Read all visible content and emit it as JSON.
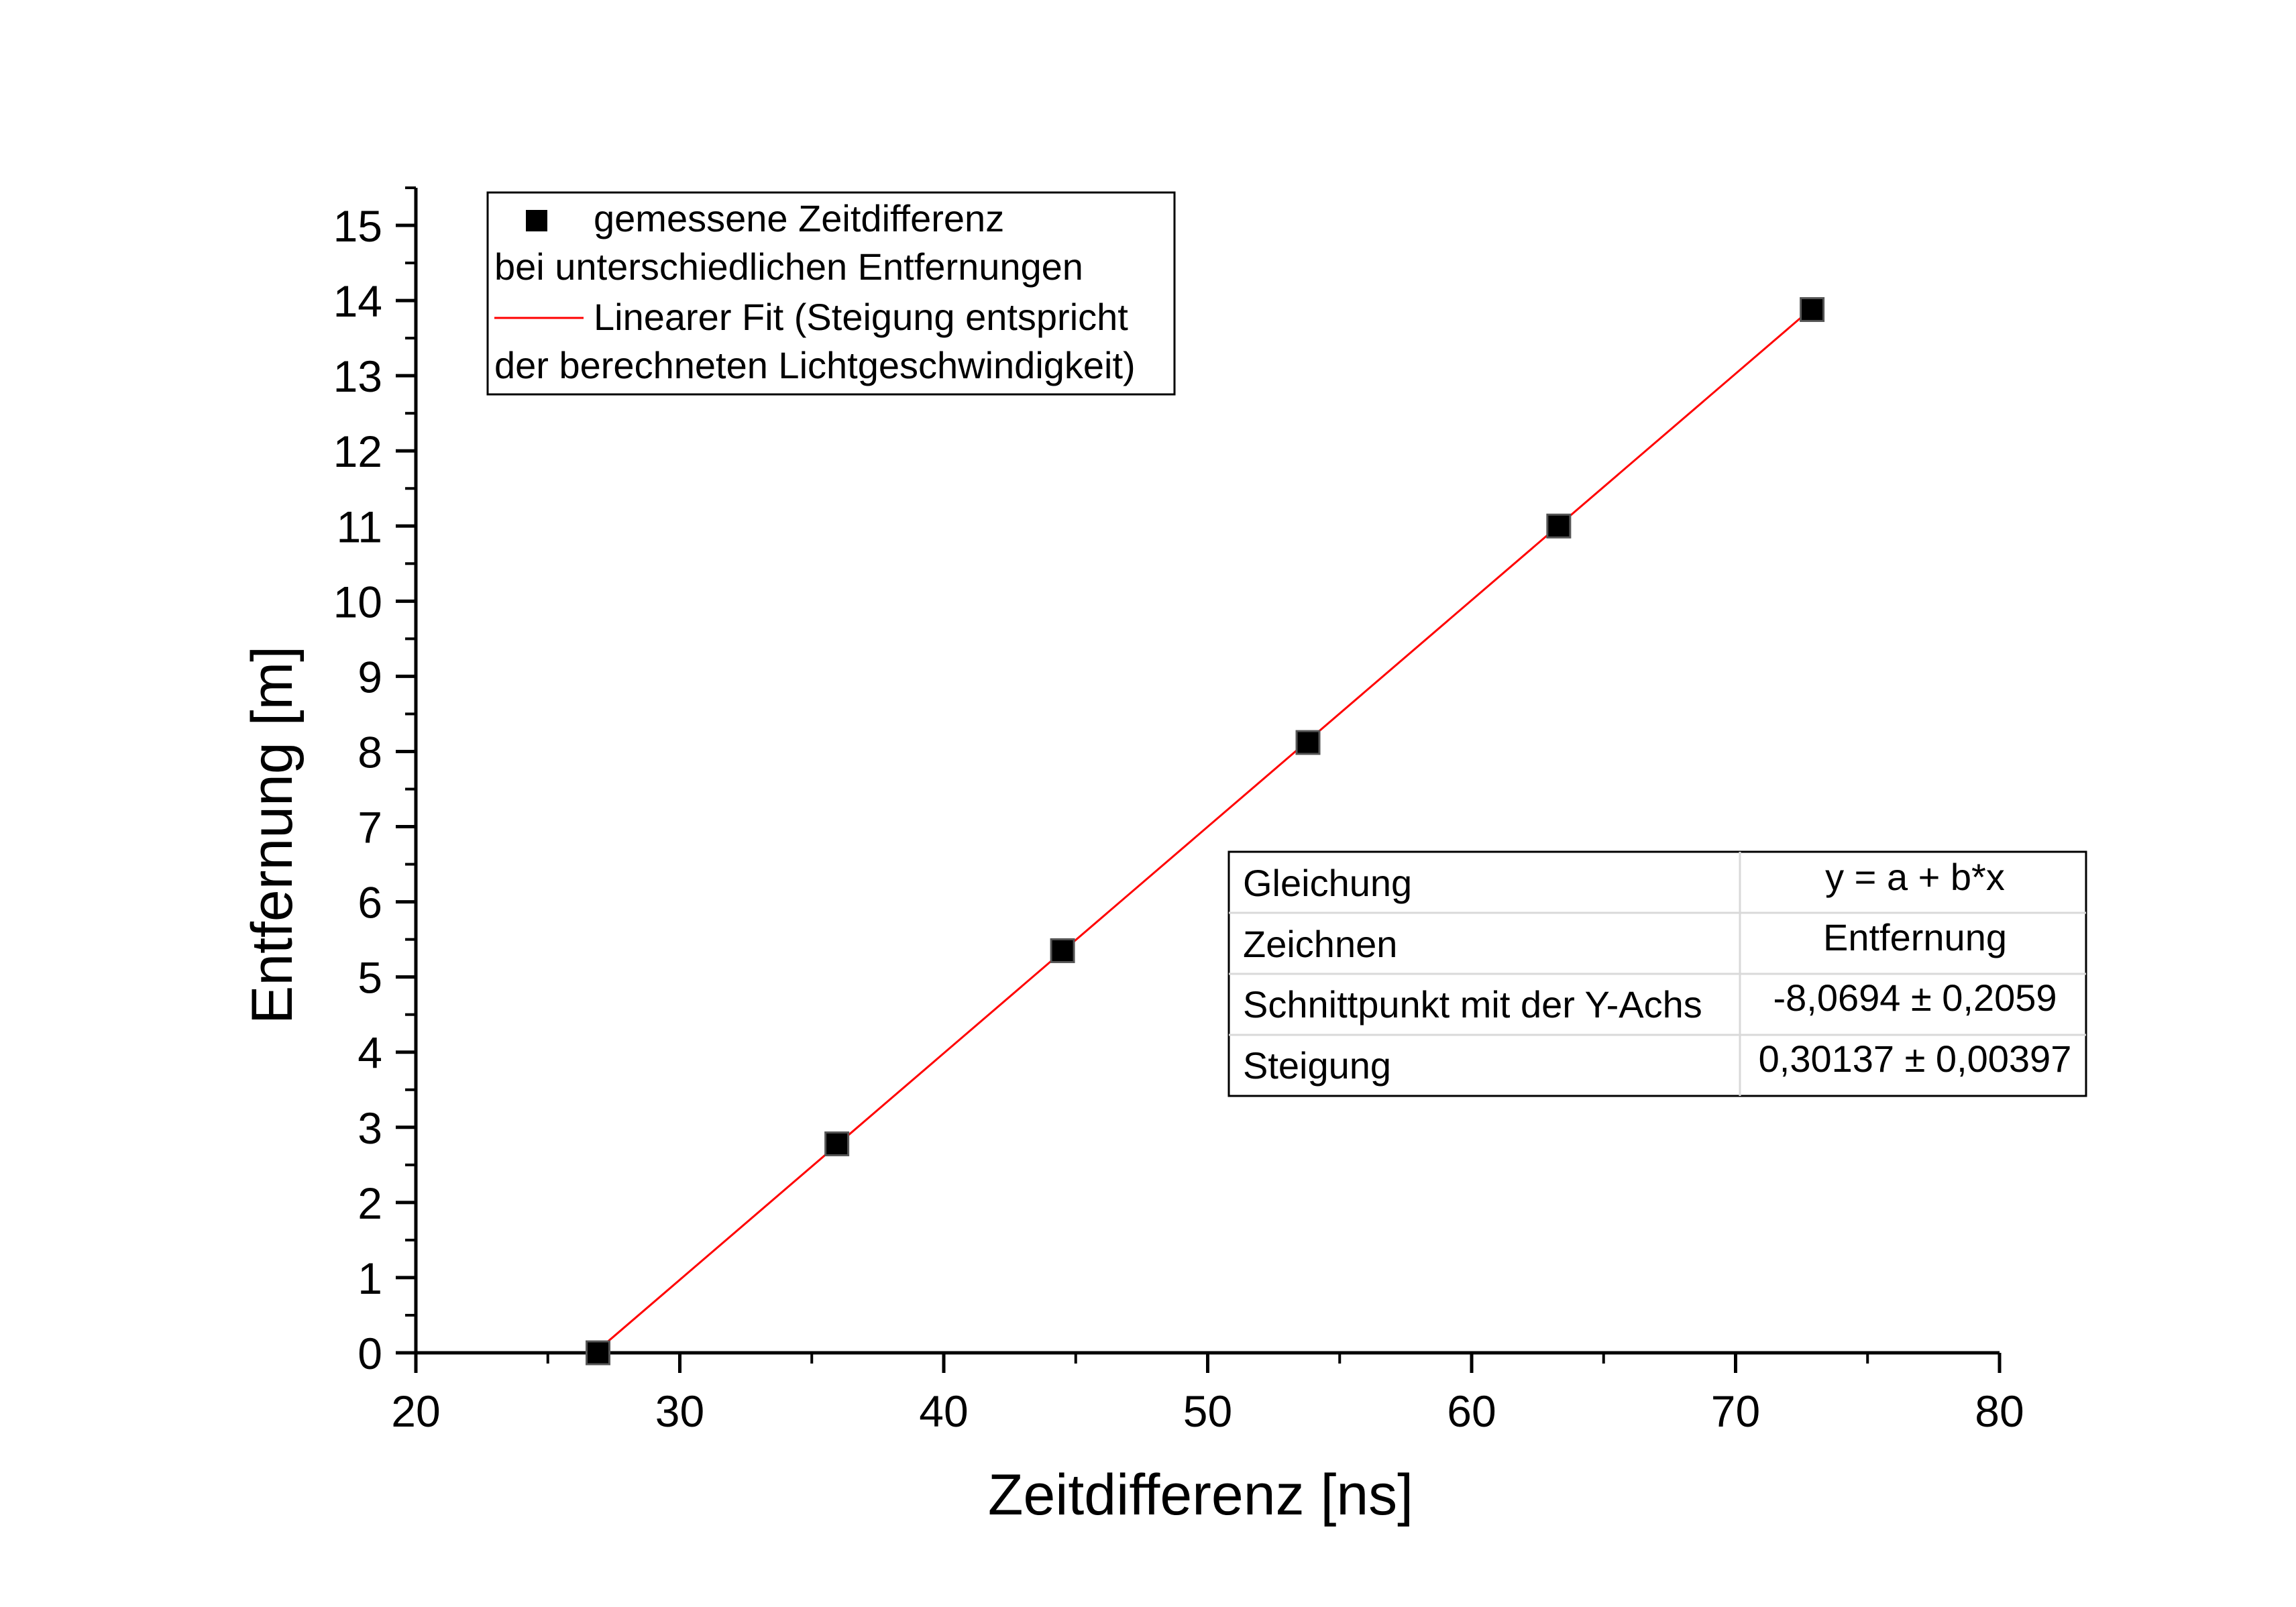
{
  "chart_data": {
    "type": "scatter",
    "title": "",
    "xlabel": "Zeitdifferenz [ns]",
    "ylabel": "Entfernung [m]",
    "xlim": [
      20,
      80
    ],
    "ylim": [
      0,
      15.5
    ],
    "xticks": [
      20,
      30,
      40,
      50,
      60,
      70,
      80
    ],
    "yticks": [
      0,
      1,
      2,
      3,
      4,
      5,
      6,
      7,
      8,
      9,
      10,
      11,
      12,
      13,
      14,
      15
    ],
    "grid": false,
    "legend_position": "top-left",
    "series": [
      {
        "name": "gemessene Zeitdifferenz bei unterschiedlichen Entfernungen",
        "kind": "scatter",
        "marker": "square",
        "color": "#000000",
        "points": [
          {
            "x": 26.9,
            "y": 0.0
          },
          {
            "x": 35.95,
            "y": 2.78
          },
          {
            "x": 44.5,
            "y": 5.35
          },
          {
            "x": 53.8,
            "y": 8.12
          },
          {
            "x": 63.3,
            "y": 11.0
          },
          {
            "x": 72.9,
            "y": 13.88
          }
        ]
      },
      {
        "name": "Linearer Fit (Steigung entspricht der berechneten Lichtgeschwindigkeit)",
        "kind": "line",
        "color": "#ff0000",
        "intercept": -8.0694,
        "slope": 0.30137,
        "x_range": [
          27.0,
          72.9
        ]
      }
    ],
    "legend": {
      "entries": [
        {
          "marker": "square",
          "color": "#000000",
          "lines": [
            "gemessene Zeitdifferenz",
            "bei unterschiedlichen Entfernungen"
          ]
        },
        {
          "marker": "line",
          "color": "#ff0000",
          "lines": [
            "Linearer Fit (Steigung entspricht",
            "der berechneten Lichtgeschwindigkeit)"
          ]
        }
      ]
    },
    "fit_table": {
      "rows": [
        {
          "label": "Gleichung",
          "value": "y = a + b*x"
        },
        {
          "label": "Zeichnen",
          "value": "Entfernung"
        },
        {
          "label": "Schnittpunkt mit der Y-Achs",
          "value": "-8,0694 ± 0,2059"
        },
        {
          "label": "Steigung",
          "value": "0,30137 ± 0,00397"
        }
      ]
    }
  }
}
